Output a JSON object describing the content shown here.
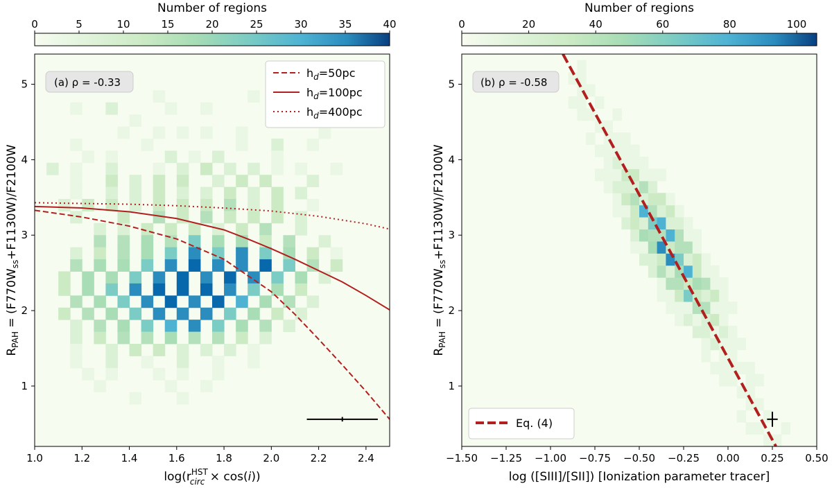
{
  "chart_data": [
    {
      "type": "heatmap",
      "panel_label": "(a) ρ = -0.33",
      "colorbar": {
        "label": "Number of regions",
        "range": [
          0,
          40
        ],
        "ticks": [
          "0",
          "5",
          "10",
          "15",
          "20",
          "25",
          "30",
          "35",
          "40"
        ]
      },
      "xlabel": "log(r_circ^HST × cos(i))",
      "ylabel": "R_PAH = (F770W_ss+F1130W)/F2100W",
      "xlim": [
        1.0,
        2.5
      ],
      "ylim": [
        0.2,
        5.4
      ],
      "x_ticks": [
        "1.0",
        "1.2",
        "1.4",
        "1.6",
        "1.8",
        "2.0",
        "2.2",
        "2.4"
      ],
      "y_ticks": [
        "1",
        "2",
        "3",
        "4",
        "5"
      ],
      "series": [
        {
          "name": "h_d=50pc",
          "style": "dashed",
          "color": "#b21f1f",
          "x": [
            1.0,
            1.2,
            1.4,
            1.6,
            1.8,
            2.0,
            2.1,
            2.2,
            2.3,
            2.4,
            2.5
          ],
          "y": [
            3.33,
            3.24,
            3.12,
            2.95,
            2.68,
            2.25,
            1.95,
            1.62,
            1.28,
            0.93,
            0.56
          ]
        },
        {
          "name": "h_d=100pc",
          "style": "solid",
          "color": "#b21f1f",
          "x": [
            1.0,
            1.2,
            1.4,
            1.6,
            1.8,
            1.9,
            2.0,
            2.1,
            2.2,
            2.3,
            2.4,
            2.5
          ],
          "y": [
            3.38,
            3.36,
            3.31,
            3.22,
            3.07,
            2.95,
            2.82,
            2.68,
            2.53,
            2.38,
            2.2,
            2.01
          ]
        },
        {
          "name": "h_d=400pc",
          "style": "dotted",
          "color": "#b21f1f",
          "x": [
            1.0,
            1.2,
            1.4,
            1.6,
            1.8,
            2.0,
            2.2,
            2.4,
            2.5
          ],
          "y": [
            3.43,
            3.42,
            3.41,
            3.39,
            3.36,
            3.32,
            3.25,
            3.15,
            3.08
          ]
        }
      ],
      "error_bar": {
        "x": 2.3,
        "y": 0.56,
        "xerr": 0.15,
        "yerr": 0.03
      },
      "cells": {
        "x0": 1.0,
        "dx": 0.05,
        "y0": 0.2,
        "dy": 0.16,
        "grid": [
          "...........................",
          "...........................",
          "....1........................",
          "..........1.......1....",
          "...1..2....1..1...........1...",
          "........1.................",
          ".......1..1.1.1..1......1....",
          "...1.....1.......1..2..1...",
          "....1.1....2.1.2....1......",
          ".2.1..2...1.2.3.2.2.1.1..1...",
          "...1..3.2.3.3..2.3.3...2..",
          "...1..2.2.3.2.2.3.2.3.2..",
          "..2.3.3.2.3.3.3.4.2.3..1...",
          "...2...3..4.3.4.3.3.3.2..",
          ".....2.2.3.3.3.2.3.4..2...",
          ".....4.4.5.4.6.5.5.3.4..2..",
          "...2.3.4.5.6.8.6.8.6.5.3.1..",
          "...4.5.5.6.8.9.8.8.9.6.4.3..",
          "..3.5.5.6.8.9.8.9.8.6.5.2.",
          "..3.5.6.8.9.9.9.8.6.5.3..",
          "...4.5.6.8.9.8.9.7.5.4.2..",
          "..3.4.5.6.8.8.8.6.5.3.2..",
          "...2.4.5.6.7.8.6.5.4.2..",
          "...2.3.4.4.5.4.4.3.2...",
          "...1..2.3.3.2.2.2.1..",
          "...1..2..1..2..1..1..",
          "....1.1...1.1..1...",
          ".....1.....1..1....",
          "........1...1....",
          "...........................",
          "...........................",
          "..........................."
        ]
      }
    },
    {
      "type": "heatmap",
      "panel_label": "(b) ρ = -0.58",
      "colorbar": {
        "label": "Number of regions",
        "range": [
          0,
          106
        ],
        "ticks": [
          "0",
          "20",
          "40",
          "60",
          "80",
          "100"
        ]
      },
      "xlabel": "log ([SIII]/[SII]) [Ionization parameter tracer]",
      "ylabel": "R_PAH = (F770W_ss+F1130W)/F2100W",
      "xlim": [
        -1.5,
        0.5
      ],
      "ylim": [
        0.2,
        5.4
      ],
      "x_ticks": [
        "−1.50",
        "−1.25",
        "−1.00",
        "−0.75",
        "−0.50",
        "−0.25",
        "0.00",
        "0.25",
        "0.50"
      ],
      "y_ticks": [
        "1",
        "2",
        "3",
        "4",
        "5"
      ],
      "series": [
        {
          "name": "Eq. (4)",
          "style": "dashed",
          "color": "#b21f1f",
          "x": [
            -0.93,
            0.27
          ],
          "y": [
            5.4,
            0.2
          ]
        }
      ],
      "error_bar": {
        "x": 0.25,
        "y": 0.56,
        "xerr": 0.03,
        "yerr": 0.1
      }
    }
  ]
}
